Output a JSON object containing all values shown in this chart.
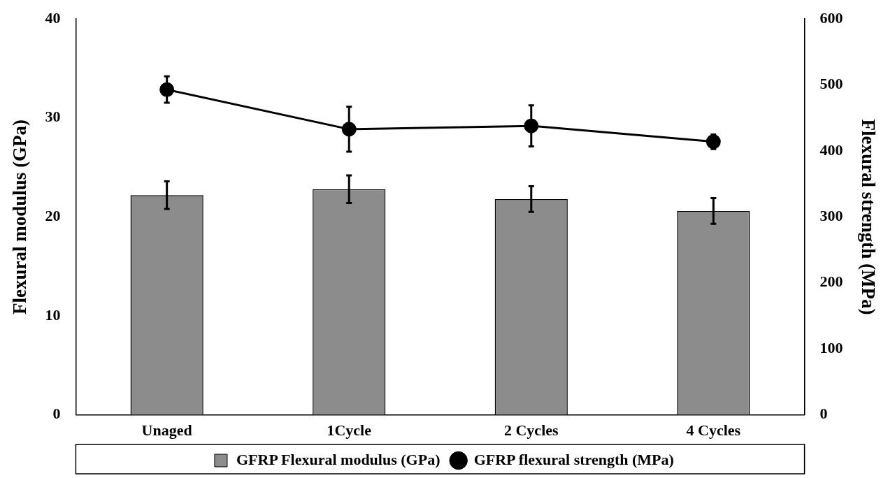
{
  "chart_data": {
    "type": "bar",
    "xlabel": null,
    "ylabel": "Flexural modulus (GPa)",
    "y2label": "Flexural strength (MPa)",
    "categories": [
      "Unaged",
      "1Cycle",
      "2 Cycles",
      "4 Cycles"
    ],
    "series": [
      {
        "name": "GFRP Flexural modulus (GPa)",
        "color": "#8c8c8c",
        "values": [
          22.2,
          22.8,
          21.8,
          20.6
        ],
        "errors": [
          1.4,
          1.4,
          1.3,
          1.3
        ]
      },
      {
        "name": "GFRP flexural strength (MPa)",
        "type": "line",
        "axis": "y2",
        "color": "#000000",
        "marker": "circle",
        "values": [
          493,
          433,
          438,
          414
        ],
        "errors": [
          20,
          34,
          31,
          11
        ]
      }
    ],
    "ylim": [
      0,
      40
    ],
    "yticks": [
      0,
      10,
      20,
      30,
      40
    ],
    "y2lim": [
      0,
      600
    ],
    "y2ticks": [
      0,
      100,
      200,
      300,
      400,
      500,
      600
    ],
    "grid": false,
    "legend": "bottom"
  }
}
